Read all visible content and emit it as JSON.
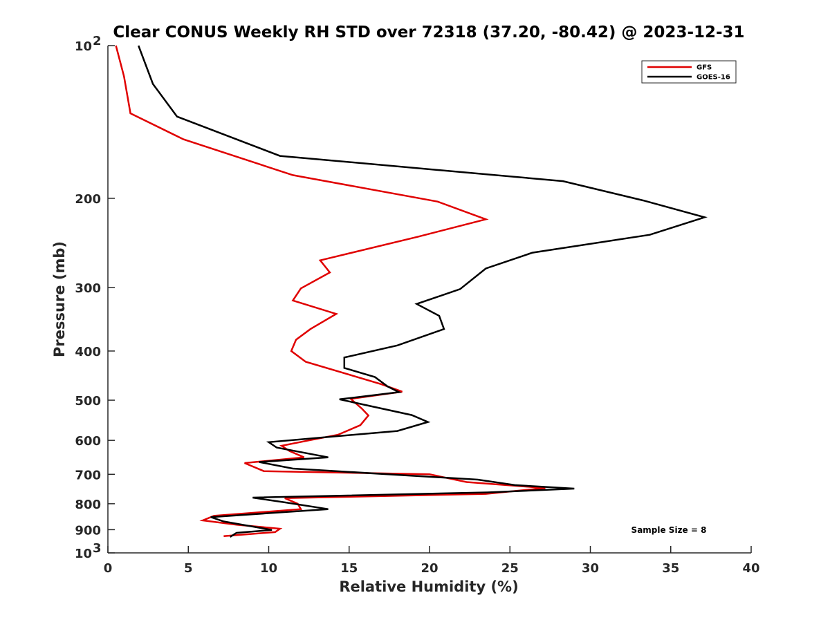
{
  "chart_data": {
    "type": "line",
    "title": "Clear CONUS Weekly RH STD over 72318 (37.20, -80.42) @ 2023-12-31",
    "xlabel": "Relative Humidity (%)",
    "ylabel": "Pressure (mb)",
    "xlim": [
      0,
      40
    ],
    "ylim": [
      100,
      1000
    ],
    "y_scale": "log",
    "y_reversed": true,
    "x_ticks": [
      "0",
      "5",
      "10",
      "15",
      "20",
      "25",
      "30",
      "35",
      "40"
    ],
    "y_ticks": [
      {
        "value": 100,
        "label": "10",
        "exp": "2"
      },
      {
        "value": 200,
        "label": "200",
        "exp": ""
      },
      {
        "value": 300,
        "label": "300",
        "exp": ""
      },
      {
        "value": 400,
        "label": "400",
        "exp": ""
      },
      {
        "value": 500,
        "label": "500",
        "exp": ""
      },
      {
        "value": 600,
        "label": "600",
        "exp": ""
      },
      {
        "value": 700,
        "label": "700",
        "exp": ""
      },
      {
        "value": 800,
        "label": "800",
        "exp": ""
      },
      {
        "value": 900,
        "label": "900",
        "exp": ""
      },
      {
        "value": 1000,
        "label": "10",
        "exp": "3"
      }
    ],
    "legend_position": "top-right",
    "annotation": "Sample Size = 8",
    "series": [
      {
        "name": "GFS",
        "color": "#e00000",
        "points": [
          [
            0.5,
            100
          ],
          [
            1.0,
            115
          ],
          [
            1.4,
            136
          ],
          [
            4.7,
            153
          ],
          [
            11.5,
            180
          ],
          [
            20.5,
            203
          ],
          [
            23.5,
            220
          ],
          [
            19.3,
            238
          ],
          [
            13.2,
            265
          ],
          [
            13.8,
            280
          ],
          [
            12.0,
            301
          ],
          [
            11.5,
            318
          ],
          [
            14.2,
            338
          ],
          [
            12.6,
            362
          ],
          [
            11.7,
            380
          ],
          [
            11.4,
            400
          ],
          [
            12.3,
            420
          ],
          [
            17.0,
            465
          ],
          [
            18.3,
            481
          ],
          [
            15.1,
            497
          ],
          [
            15.8,
            520
          ],
          [
            16.2,
            536
          ],
          [
            15.7,
            560
          ],
          [
            14.3,
            585
          ],
          [
            12.5,
            600
          ],
          [
            10.8,
            615
          ],
          [
            11.3,
            630
          ],
          [
            12.2,
            648
          ],
          [
            8.5,
            665
          ],
          [
            9.7,
            690
          ],
          [
            20.0,
            700
          ],
          [
            22.3,
            725
          ],
          [
            27.2,
            745
          ],
          [
            23.5,
            765
          ],
          [
            11.0,
            780
          ],
          [
            11.8,
            800
          ],
          [
            12.0,
            820
          ],
          [
            6.6,
            845
          ],
          [
            5.9,
            863
          ],
          [
            8.0,
            880
          ],
          [
            10.7,
            896
          ],
          [
            10.4,
            910
          ],
          [
            7.2,
            927
          ]
        ]
      },
      {
        "name": "GOES-16",
        "color": "#000000",
        "points": [
          [
            1.9,
            100
          ],
          [
            2.8,
            119
          ],
          [
            4.3,
            138
          ],
          [
            10.7,
            165
          ],
          [
            28.3,
            185
          ],
          [
            33.3,
            202
          ],
          [
            37.1,
            218
          ],
          [
            33.7,
            236
          ],
          [
            26.4,
            256
          ],
          [
            23.5,
            275
          ],
          [
            21.9,
            302
          ],
          [
            19.2,
            323
          ],
          [
            20.6,
            341
          ],
          [
            20.9,
            362
          ],
          [
            18.0,
            390
          ],
          [
            14.7,
            412
          ],
          [
            14.7,
            432
          ],
          [
            16.6,
            450
          ],
          [
            17.4,
            470
          ],
          [
            18.1,
            482
          ],
          [
            14.4,
            498
          ],
          [
            18.9,
            535
          ],
          [
            19.9,
            552
          ],
          [
            18.0,
            575
          ],
          [
            10.0,
            605
          ],
          [
            10.5,
            620
          ],
          [
            13.7,
            648
          ],
          [
            9.4,
            662
          ],
          [
            11.5,
            682
          ],
          [
            23.0,
            717
          ],
          [
            25.3,
            735
          ],
          [
            29.0,
            747
          ],
          [
            23.6,
            760
          ],
          [
            9.0,
            778
          ],
          [
            11.0,
            795
          ],
          [
            13.7,
            820
          ],
          [
            6.4,
            850
          ],
          [
            7.2,
            867
          ],
          [
            10.2,
            901
          ],
          [
            8.0,
            913
          ],
          [
            7.6,
            930
          ]
        ]
      }
    ]
  }
}
